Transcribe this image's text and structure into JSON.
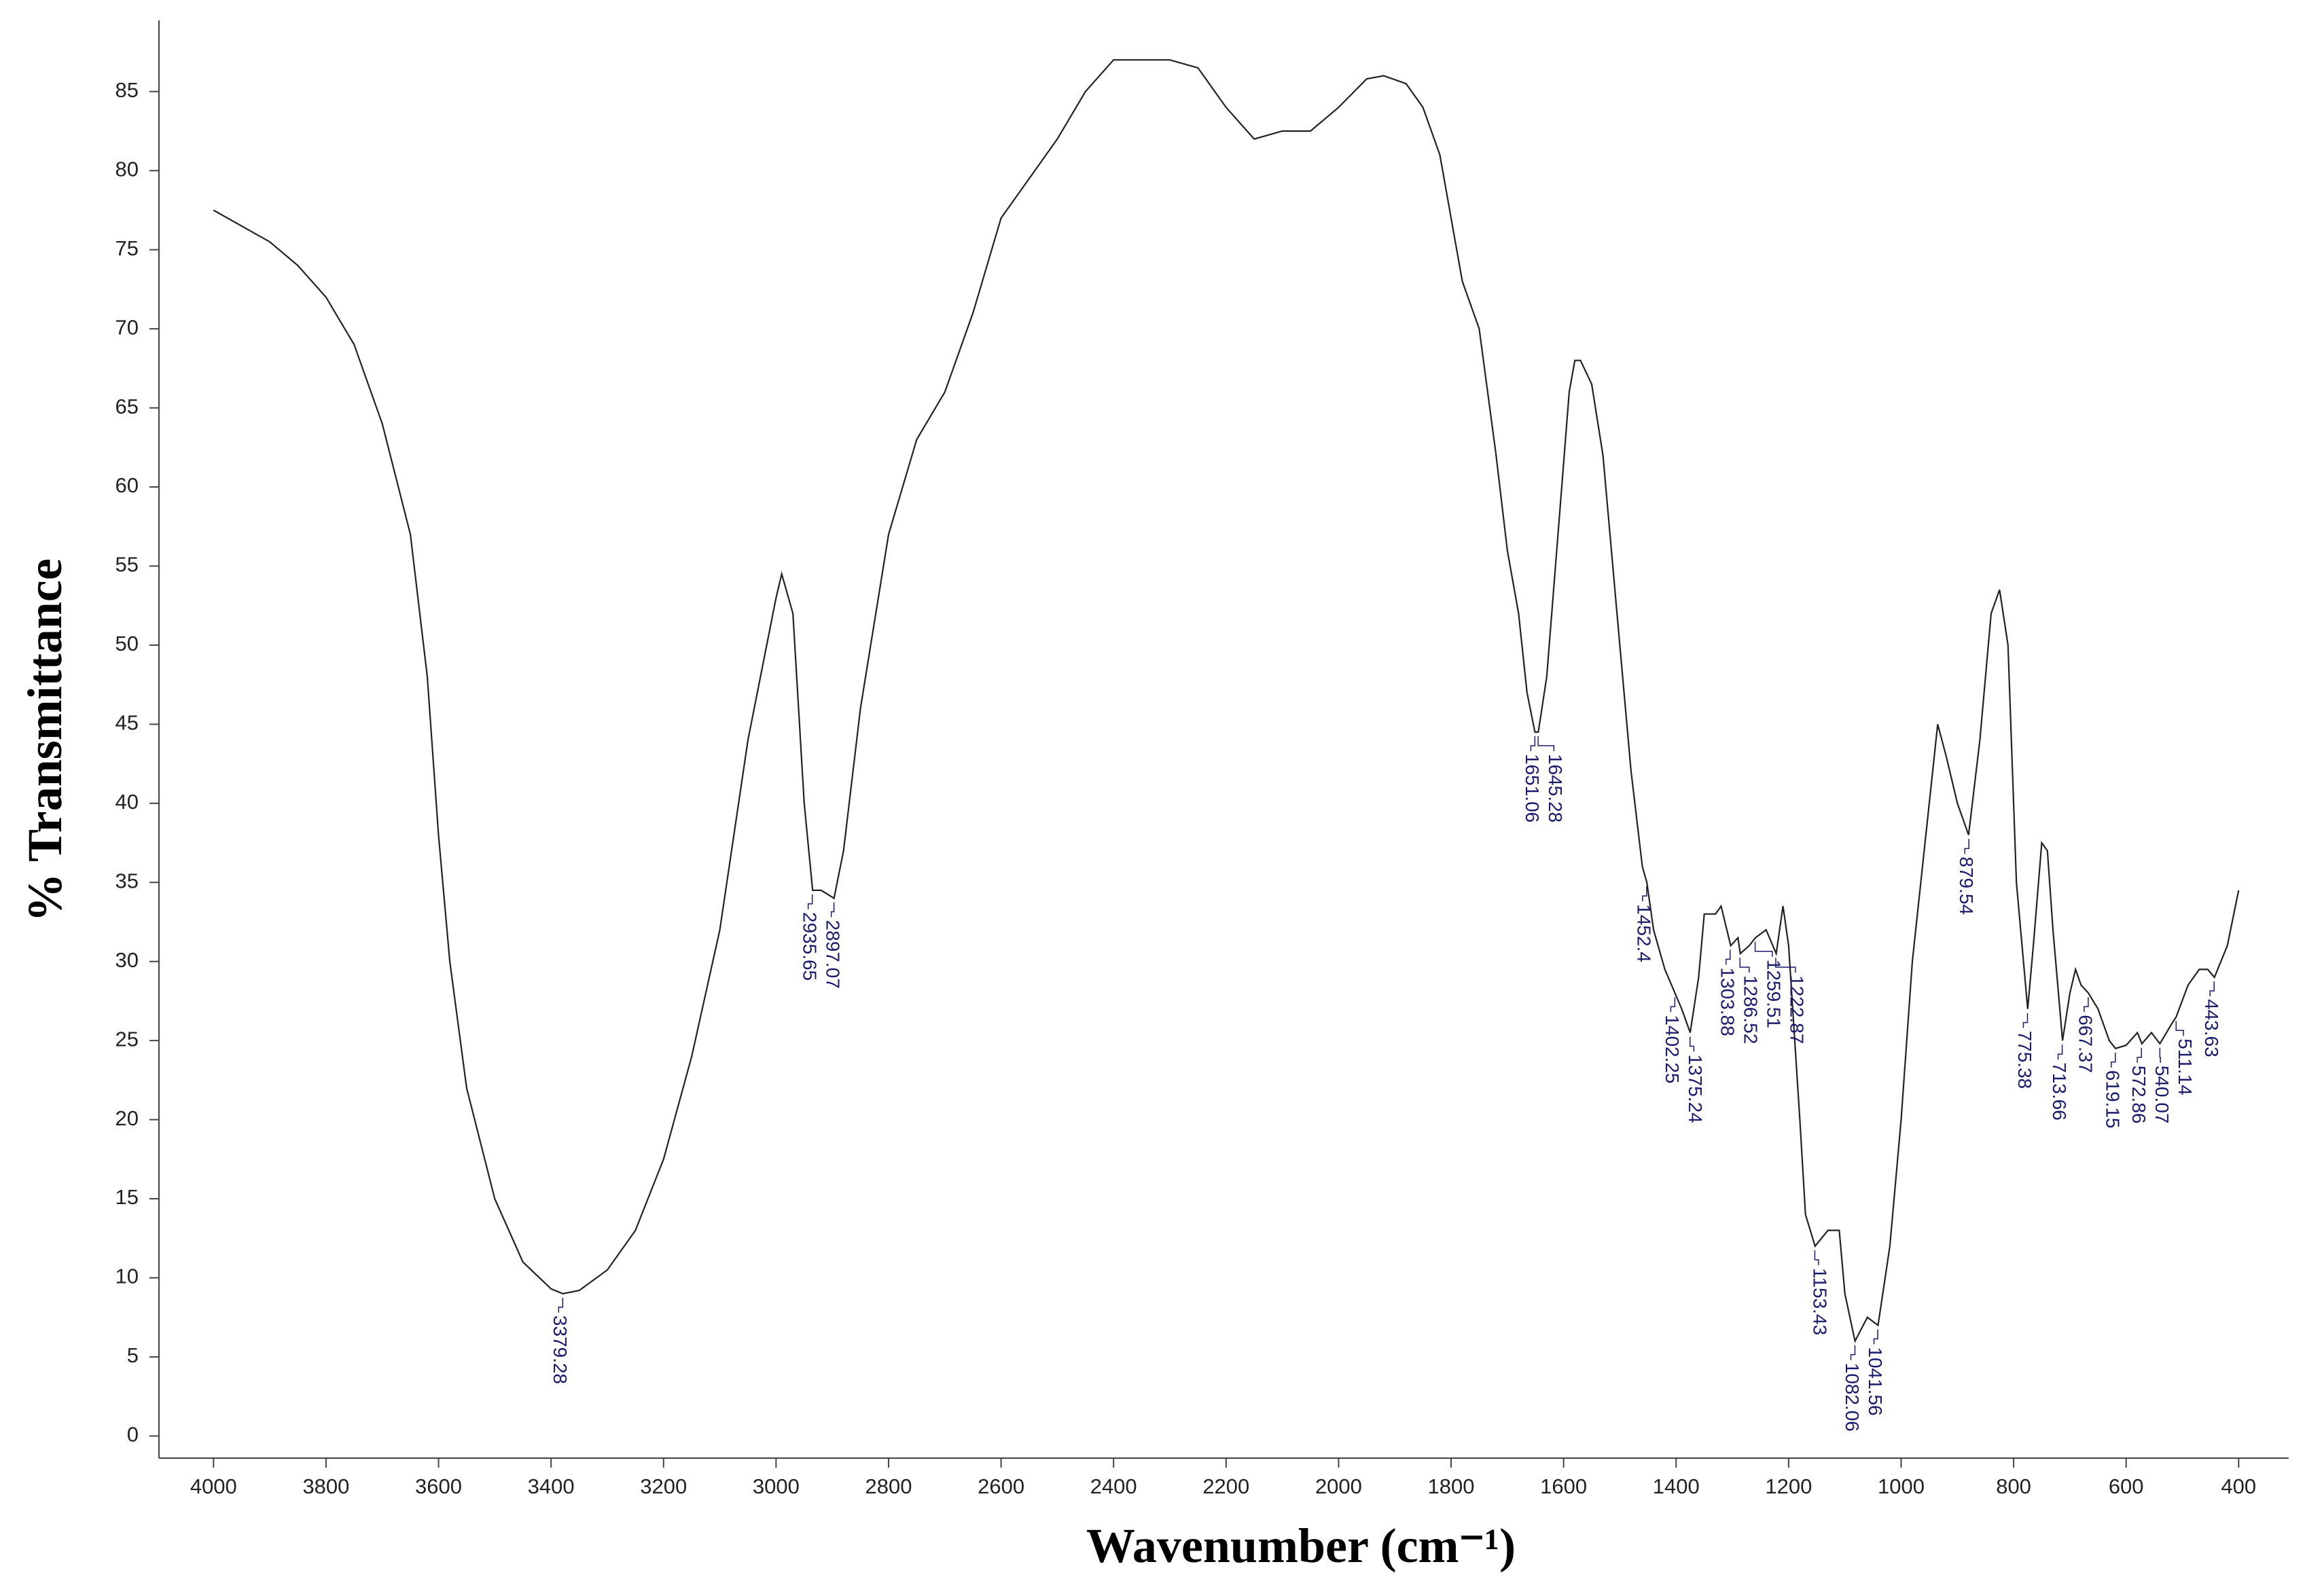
{
  "chart_data": {
    "type": "line",
    "x_label": "Wavenumber (cm⁻¹)",
    "y_label": "% Transmittance",
    "color": "#222222",
    "xlim": [
      4097,
      311
    ],
    "ylim": [
      -1.4,
      89.5
    ],
    "xticks": [
      4000,
      3800,
      3600,
      3400,
      3200,
      3000,
      2800,
      2600,
      2400,
      2200,
      2000,
      1800,
      1600,
      1400,
      1200,
      1000,
      800,
      600,
      400
    ],
    "yticks": [
      0,
      5,
      10,
      15,
      20,
      25,
      30,
      35,
      40,
      45,
      50,
      55,
      60,
      65,
      70,
      75,
      80,
      85
    ],
    "x": [
      4000,
      3950,
      3900,
      3850,
      3800,
      3750,
      3700,
      3650,
      3620,
      3600,
      3580,
      3550,
      3500,
      3450,
      3400,
      3379,
      3350,
      3300,
      3250,
      3200,
      3150,
      3100,
      3050,
      3000,
      2990,
      2970,
      2950,
      2935,
      2920,
      2897,
      2880,
      2850,
      2800,
      2750,
      2700,
      2650,
      2600,
      2550,
      2500,
      2450,
      2400,
      2350,
      2300,
      2250,
      2200,
      2150,
      2100,
      2050,
      2000,
      1950,
      1920,
      1880,
      1850,
      1820,
      1800,
      1780,
      1750,
      1720,
      1700,
      1680,
      1665,
      1651,
      1645,
      1630,
      1610,
      1590,
      1580,
      1570,
      1550,
      1530,
      1500,
      1480,
      1460,
      1452,
      1440,
      1420,
      1402,
      1390,
      1375,
      1360,
      1350,
      1330,
      1320,
      1303,
      1290,
      1286,
      1270,
      1259,
      1240,
      1222,
      1210,
      1200,
      1180,
      1170,
      1153,
      1130,
      1110,
      1100,
      1082,
      1060,
      1041,
      1020,
      1000,
      980,
      950,
      935,
      920,
      900,
      880,
      860,
      840,
      825,
      810,
      795,
      775,
      765,
      750,
      740,
      730,
      713,
      700,
      690,
      680,
      667,
      650,
      630,
      619,
      600,
      580,
      572,
      555,
      540,
      520,
      511,
      490,
      470,
      455,
      443,
      420,
      400
    ],
    "values": [
      77.5,
      76.5,
      75.5,
      74,
      72,
      69,
      64,
      57,
      48,
      38,
      30,
      22,
      15,
      11,
      9.3,
      9,
      9.2,
      10.5,
      13,
      17.5,
      24,
      32,
      44,
      53,
      54.5,
      52,
      40,
      34.5,
      34.5,
      34,
      37,
      46,
      57,
      63,
      66,
      71,
      77,
      79.5,
      82,
      85,
      87,
      87,
      87,
      86.5,
      84,
      82,
      82.5,
      82.5,
      84,
      85.8,
      86,
      85.5,
      84,
      81,
      77,
      73,
      70,
      62,
      56,
      52,
      47,
      44.5,
      44.5,
      48,
      57,
      66,
      68,
      68,
      66.5,
      62,
      50,
      42,
      36,
      35,
      32,
      29.5,
      28,
      27,
      25.5,
      29,
      33,
      33,
      33.5,
      31,
      31.5,
      30.5,
      31,
      31.5,
      32,
      30.5,
      33.5,
      31,
      20,
      14,
      12,
      13,
      13,
      9,
      6,
      7.5,
      7,
      12,
      20,
      30,
      40,
      45,
      43,
      40,
      38,
      44,
      52,
      53.5,
      50,
      35,
      27,
      31,
      37.5,
      37,
      32,
      25,
      28,
      29.5,
      28.5,
      28,
      27,
      25,
      24.5,
      24.7,
      25.5,
      24.8,
      25.5,
      24.8,
      26,
      26.5,
      28.5,
      29.5,
      29.5,
      29,
      31,
      34.5
    ],
    "annotations": [
      {
        "label": "3379.28",
        "x": 3379.28,
        "y": 9
      },
      {
        "label": "2935.65",
        "x": 2935.65,
        "y": 34.5
      },
      {
        "label": "2897.07",
        "x": 2897.07,
        "y": 34
      },
      {
        "label": "1651.06",
        "x": 1651.06,
        "y": 44.5
      },
      {
        "label": "1645.28",
        "x": 1645.28,
        "y": 44.5
      },
      {
        "label": "1452.4",
        "x": 1452.4,
        "y": 35
      },
      {
        "label": "1402.25",
        "x": 1402.25,
        "y": 28
      },
      {
        "label": "1375.24",
        "x": 1375.24,
        "y": 25.5
      },
      {
        "label": "1303.88",
        "x": 1303.88,
        "y": 31
      },
      {
        "label": "1286.52",
        "x": 1286.52,
        "y": 30.5
      },
      {
        "label": "1259.51",
        "x": 1259.51,
        "y": 31.5
      },
      {
        "label": "1222.87",
        "x": 1222.87,
        "y": 30.5
      },
      {
        "label": "1153.43",
        "x": 1153.43,
        "y": 12
      },
      {
        "label": "1082.06",
        "x": 1082.06,
        "y": 6
      },
      {
        "label": "1041.56",
        "x": 1041.56,
        "y": 7
      },
      {
        "label": "879.54",
        "x": 879.54,
        "y": 38
      },
      {
        "label": "775.38",
        "x": 775.38,
        "y": 27
      },
      {
        "label": "713.66",
        "x": 713.66,
        "y": 25
      },
      {
        "label": "667.37",
        "x": 667.37,
        "y": 28
      },
      {
        "label": "619.15",
        "x": 619.15,
        "y": 24.5
      },
      {
        "label": "572.86",
        "x": 572.86,
        "y": 24.8
      },
      {
        "label": "540.07",
        "x": 540.07,
        "y": 24.8
      },
      {
        "label": "511.14",
        "x": 511.14,
        "y": 26.5
      },
      {
        "label": "443.63",
        "x": 443.63,
        "y": 29
      }
    ]
  }
}
